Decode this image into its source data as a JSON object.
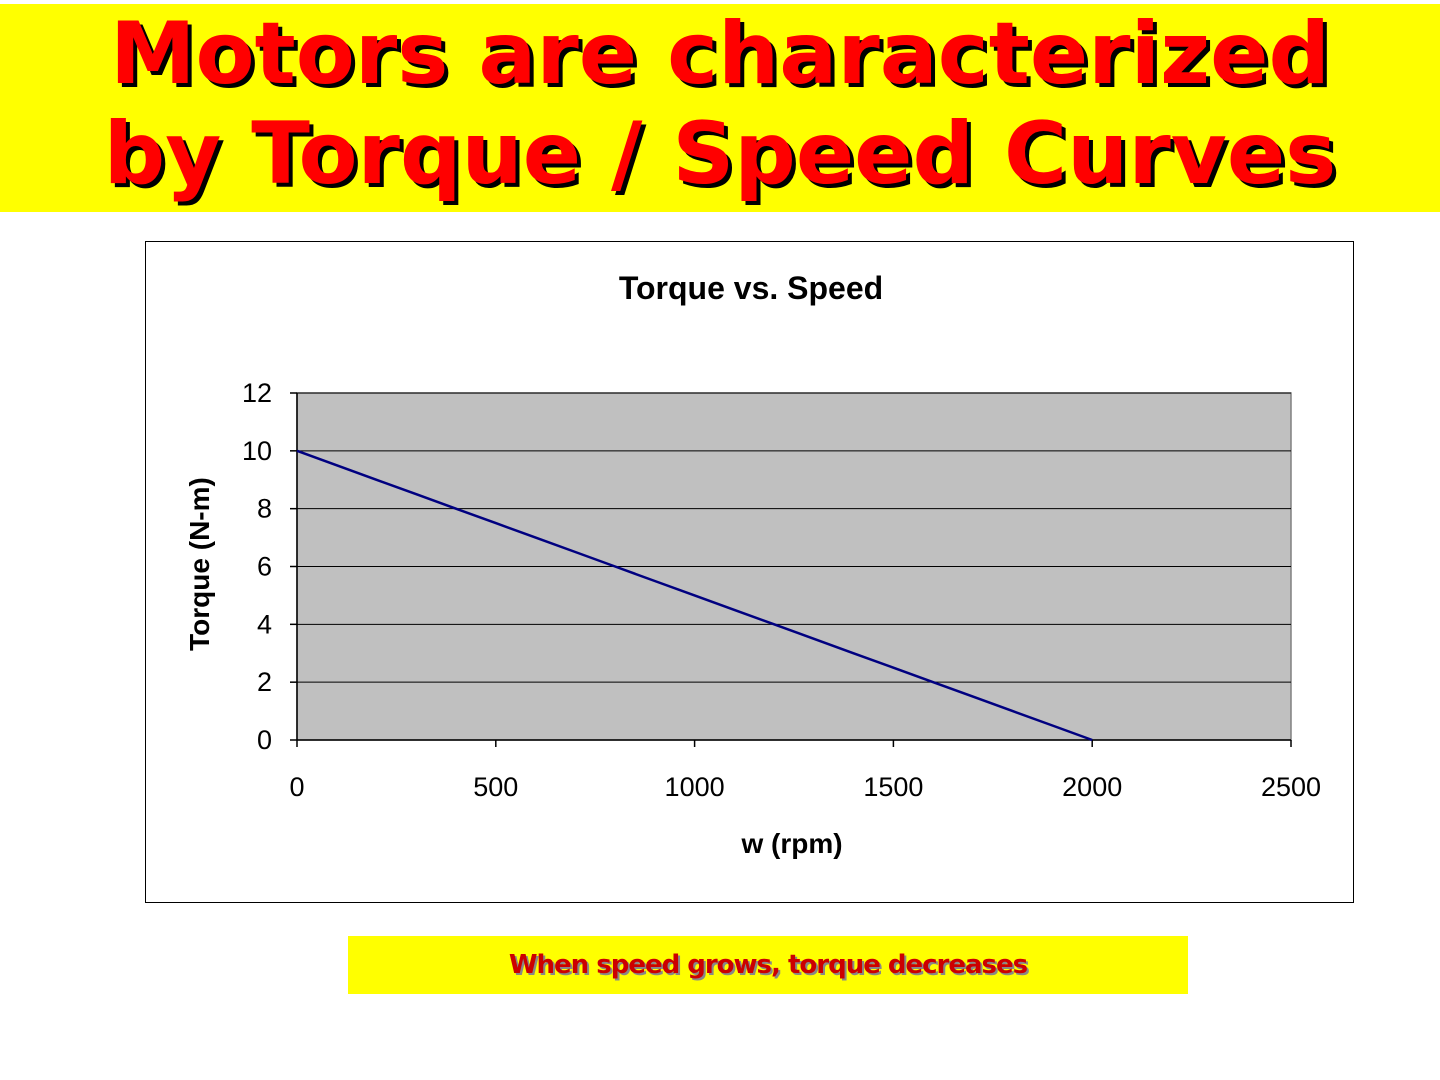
{
  "slide": {
    "title_line1": "Motors are characterized",
    "title_line2": "by Torque / Speed Curves",
    "caption": "When speed grows, torque decreases",
    "colors": {
      "banner": "#ffff00",
      "title_text": "#ff0000",
      "caption_text": "#cc0000",
      "plot_area": "#c0c0c0",
      "series_line": "#000080"
    }
  },
  "chart_data": {
    "type": "line",
    "title": "Torque vs. Speed",
    "xlabel": "w (rpm)",
    "ylabel": "Torque (N-m)",
    "xlim": [
      0,
      2500
    ],
    "ylim": [
      0,
      12
    ],
    "xticks": [
      0,
      500,
      1000,
      1500,
      2000,
      2500
    ],
    "yticks": [
      0,
      2,
      4,
      6,
      8,
      10,
      12
    ],
    "grid": true,
    "legend": "none",
    "series": [
      {
        "x": [
          0,
          100,
          200,
          300,
          400,
          500,
          600,
          700,
          800,
          900,
          1000,
          1100,
          1200,
          1300,
          1400,
          1500,
          1600,
          1700,
          1800,
          1900,
          2000
        ],
        "values": [
          10,
          9.5,
          9,
          8.5,
          8,
          7.5,
          7,
          6.5,
          6,
          5.5,
          5,
          4.5,
          4,
          3.5,
          3,
          2.5,
          2,
          1.5,
          1,
          0.5,
          0
        ]
      }
    ]
  }
}
